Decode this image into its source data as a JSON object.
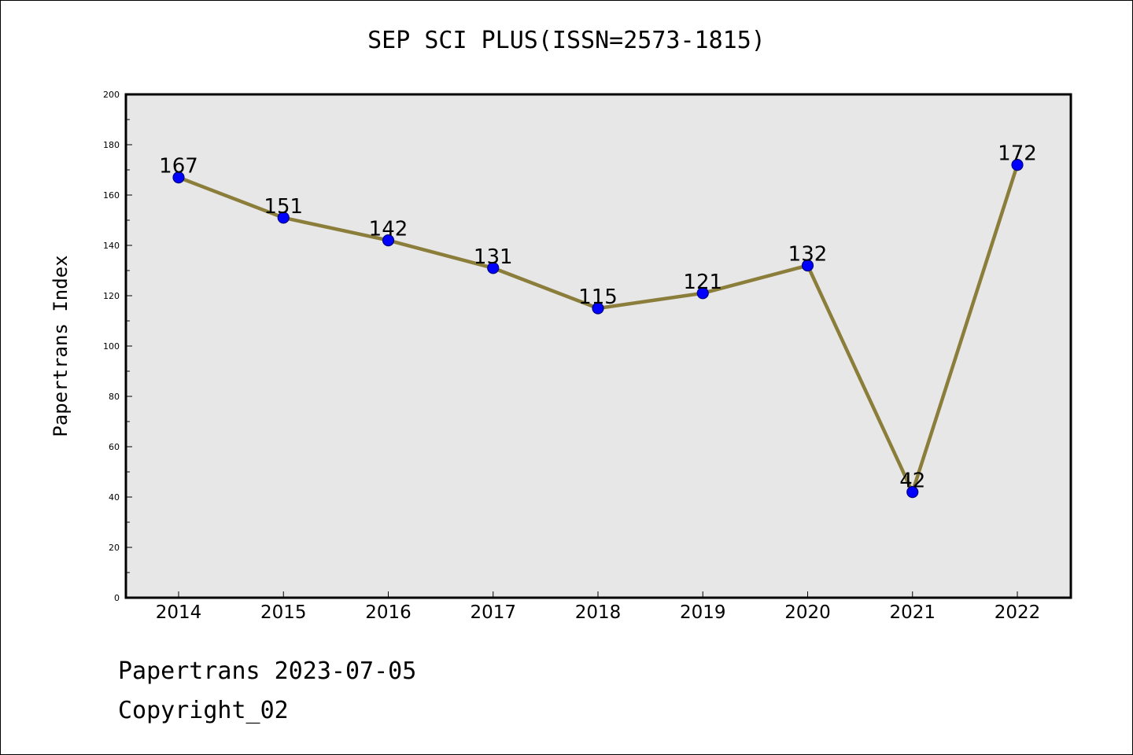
{
  "title": "SEP SCI PLUS(ISSN=2573-1815)",
  "footer": {
    "date_line": "Papertrans 2023-07-05",
    "copyright_line": "Copyright_02"
  },
  "chart_data": {
    "type": "line",
    "title": "SEP SCI PLUS(ISSN=2573-1815)",
    "xlabel": "",
    "ylabel": "Papertrans Index",
    "categories": [
      "2014",
      "2015",
      "2016",
      "2017",
      "2018",
      "2019",
      "2020",
      "2021",
      "2022"
    ],
    "series": [
      {
        "values": [
          167,
          151,
          142,
          131,
          115,
          121,
          132,
          42,
          172
        ]
      }
    ],
    "ylim": [
      0,
      200
    ],
    "yticks": [
      "0",
      "20",
      "40",
      "60",
      "80",
      "100",
      "120",
      "140",
      "160",
      "180",
      "200"
    ],
    "data_labels": [
      "167",
      "151",
      "142",
      "131",
      "115",
      "121",
      "132",
      "42",
      "172"
    ],
    "grid": false,
    "legend": "none"
  },
  "colors": {
    "plot_background": "#e7e7e7",
    "line": "#8b7d3a",
    "marker_fill": "#0000ff",
    "marker_edge": "#000080",
    "axes": "#000000"
  }
}
